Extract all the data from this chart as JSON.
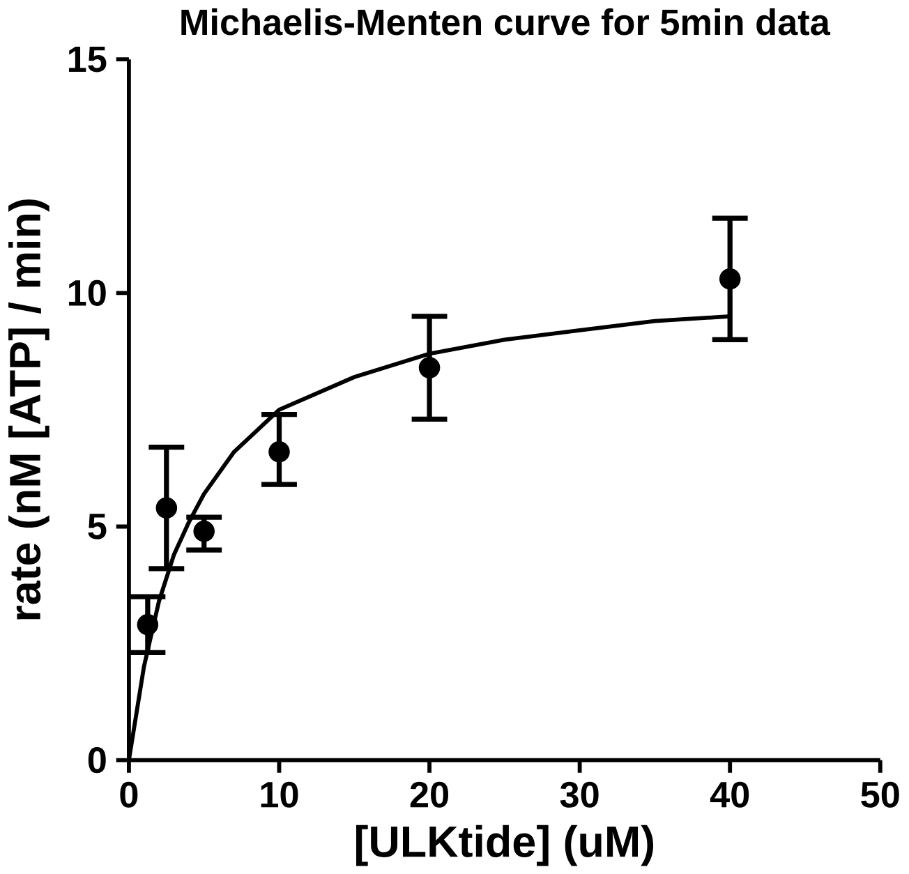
{
  "chart_data": {
    "type": "scatter",
    "title": "Michaelis-Menten curve for 5min data",
    "xlabel": "[ULKtide] (uM)",
    "ylabel": "rate (nM [ATP] / min)",
    "xlim": [
      0,
      50
    ],
    "ylim": [
      0,
      15
    ],
    "xticks": [
      0,
      10,
      20,
      30,
      40,
      50
    ],
    "yticks": [
      0,
      5,
      10,
      15
    ],
    "grid": false,
    "series": [
      {
        "color": "#000000",
        "marker": "circle",
        "x": [
          1.25,
          2.5,
          5,
          10,
          20,
          40
        ],
        "values": [
          2.9,
          5.4,
          4.9,
          6.6,
          8.4,
          10.3
        ],
        "errors": [
          [
            2.3,
            3.5
          ],
          [
            4.1,
            6.7
          ],
          [
            4.5,
            5.2
          ],
          [
            5.9,
            7.4
          ],
          [
            7.3,
            9.5
          ],
          [
            9.0,
            11.6
          ]
        ]
      },
      {
        "type": "line",
        "color": "#000000",
        "marker": "none",
        "line_style": "solid",
        "x": [
          0,
          1,
          2,
          3,
          4,
          5,
          7,
          10,
          15,
          20,
          25,
          30,
          35,
          40
        ],
        "values": [
          0,
          2.0,
          3.4,
          4.4,
          5.1,
          5.7,
          6.6,
          7.5,
          8.2,
          8.7,
          9.0,
          9.2,
          9.4,
          9.5
        ]
      }
    ]
  }
}
